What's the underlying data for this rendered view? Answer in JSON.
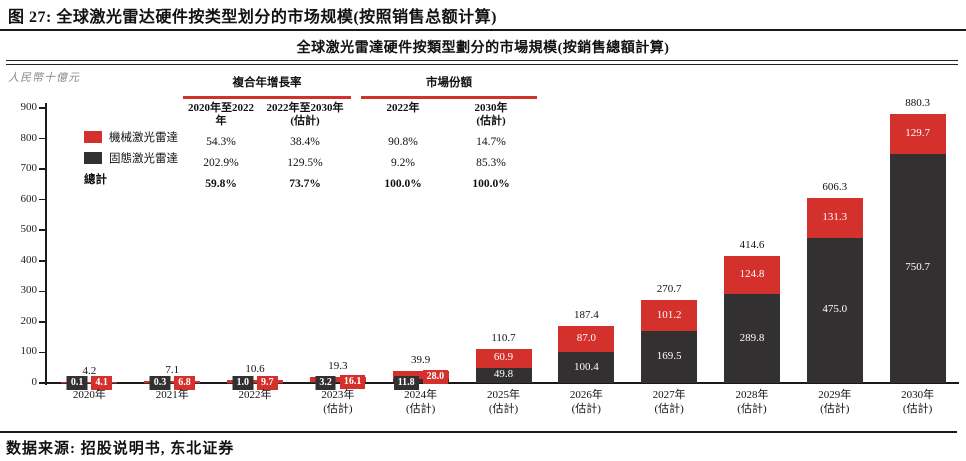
{
  "figure": {
    "title": "图 27: 全球激光雷达硬件按类型划分的市场规模(按照销售总额计算)",
    "source": "数据来源: 招股说明书, 东北证券"
  },
  "colors": {
    "mechanical_red": "#d4302c",
    "solid_dark": "#323031",
    "axis_black": "#1a1a1a",
    "unit_gray": "#8a8a8a"
  },
  "chart_data": {
    "type": "bar",
    "stacked": true,
    "title": "全球激光雷達硬件按類型劃分的市場規模(按銷售總額計算)",
    "unit_label": "人民幣十億元",
    "categories": [
      {
        "year": "2020年",
        "note": ""
      },
      {
        "year": "2021年",
        "note": ""
      },
      {
        "year": "2022年",
        "note": ""
      },
      {
        "year": "2023年",
        "note": "(估計)"
      },
      {
        "year": "2024年",
        "note": "(估計)"
      },
      {
        "year": "2025年",
        "note": "(估計)"
      },
      {
        "year": "2026年",
        "note": "(估計)"
      },
      {
        "year": "2027年",
        "note": "(估計)"
      },
      {
        "year": "2028年",
        "note": "(估計)"
      },
      {
        "year": "2029年",
        "note": "(估計)"
      },
      {
        "year": "2030年",
        "note": "(估計)"
      }
    ],
    "series": [
      {
        "name": "固態激光雷達",
        "color": "#323031",
        "values": [
          0.1,
          0.3,
          1.0,
          3.2,
          11.8,
          49.8,
          100.4,
          169.5,
          289.8,
          475.0,
          750.7
        ]
      },
      {
        "name": "機械激光雷達",
        "color": "#d4302c",
        "values": [
          4.1,
          6.8,
          9.7,
          16.1,
          28.0,
          60.9,
          87.0,
          101.2,
          124.8,
          131.3,
          129.7
        ]
      }
    ],
    "totals": [
      4.2,
      7.1,
      10.6,
      19.3,
      39.9,
      110.7,
      187.4,
      270.7,
      414.6,
      606.3,
      880.3
    ],
    "ylim": [
      0,
      900
    ],
    "yticks": [
      0,
      100,
      200,
      300,
      400,
      500,
      600,
      700,
      800,
      900
    ],
    "grid": false,
    "legend_position": "inside-top-left"
  },
  "legend": {
    "items": [
      {
        "label": "機械激光雷達",
        "color": "#d4302c"
      },
      {
        "label": "固態激光雷達",
        "color": "#323031"
      }
    ],
    "total_label": "總計"
  },
  "overlay_table": {
    "groups": [
      {
        "label": "複合年增長率"
      },
      {
        "label": "市場份額"
      }
    ],
    "columns": [
      "2020年至2022年",
      "2022年至2030年\n(估計)",
      "2022年",
      "2030年\n(估計)"
    ],
    "rows": [
      {
        "label": "機械激光雷達",
        "values": [
          "54.3%",
          "38.4%",
          "90.8%",
          "14.7%"
        ],
        "bold": false
      },
      {
        "label": "固態激光雷達",
        "values": [
          "202.9%",
          "129.5%",
          "9.2%",
          "85.3%"
        ],
        "bold": false
      },
      {
        "label": "總計",
        "values": [
          "59.8%",
          "73.7%",
          "100.0%",
          "100.0%"
        ],
        "bold": true
      }
    ]
  }
}
